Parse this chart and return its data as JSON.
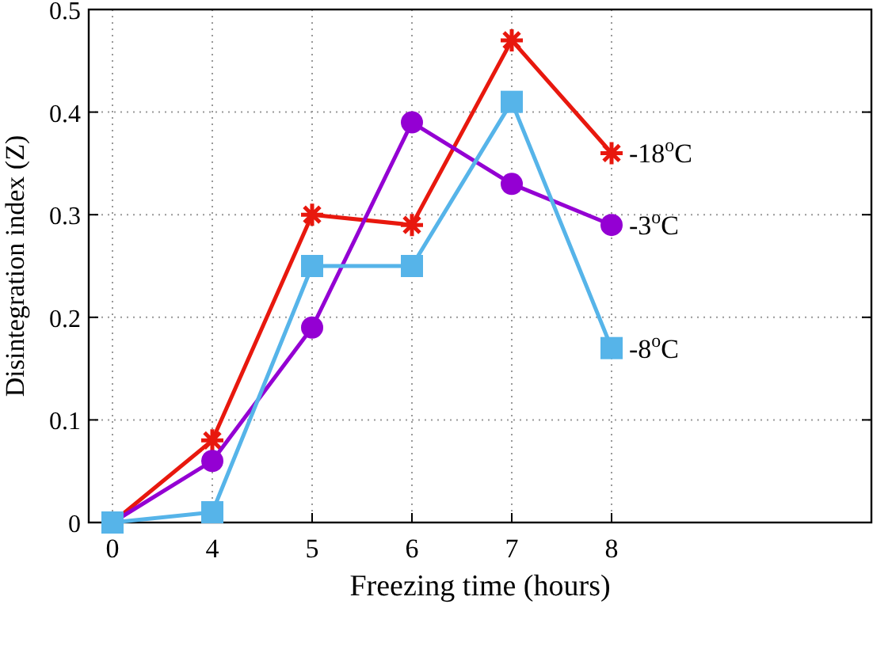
{
  "chart_data": {
    "type": "line",
    "xlabel": "Freezing time (hours)",
    "ylabel": "Disintegration index (Z)",
    "categories": [
      "0",
      "4",
      "5",
      "6",
      "7",
      "8"
    ],
    "ylim": [
      0,
      0.5
    ],
    "yticks": [
      0,
      0.1,
      0.2,
      0.3,
      0.4,
      0.5
    ],
    "grid": true,
    "series": [
      {
        "name": "-18$^{o}$C",
        "color": "#e8180e",
        "marker": "cross",
        "values": [
          0,
          0.08,
          0.3,
          0.29,
          0.47,
          0.36
        ]
      },
      {
        "name": "-3$^{o}$C",
        "color": "#9400d3",
        "marker": "circle",
        "values": [
          0,
          0.06,
          0.19,
          0.39,
          0.33,
          0.29
        ]
      },
      {
        "name": "-8$^{o}$C",
        "color": "#56b4e9",
        "marker": "square",
        "values": [
          0,
          0.01,
          0.25,
          0.25,
          0.41,
          0.17
        ]
      }
    ]
  }
}
